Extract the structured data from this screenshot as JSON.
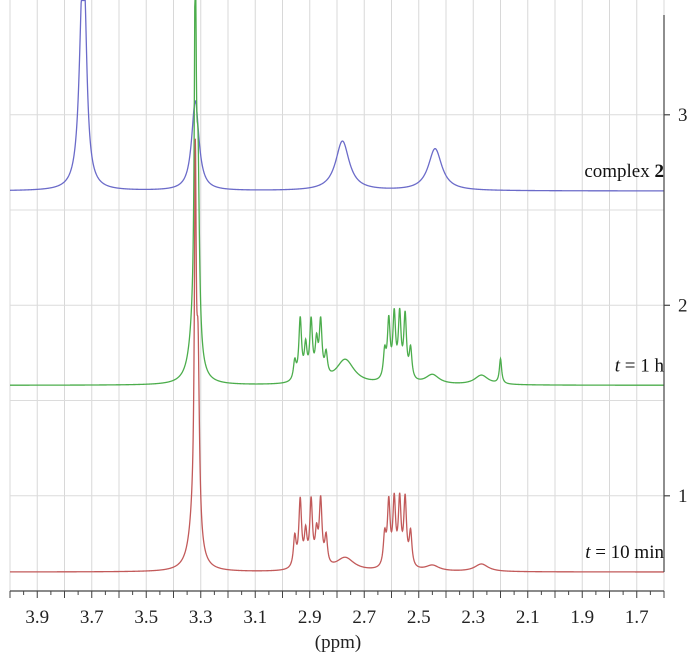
{
  "chart_data": {
    "type": "line",
    "title": "",
    "xlabel": "(ppm)",
    "ylabel": "",
    "xlim": [
      4.0,
      1.6
    ],
    "x_reversed": true,
    "ylim": [
      0.6,
      3.55
    ],
    "grid": true,
    "x_ticks": [
      3.9,
      3.7,
      3.5,
      3.3,
      3.1,
      2.9,
      2.7,
      2.5,
      2.3,
      2.1,
      1.9,
      1.7
    ],
    "x_tick_labels": [
      "3.9",
      "3.7",
      "3.5",
      "3.3",
      "3.1",
      "2.9",
      "2.7",
      "2.5",
      "2.3",
      "2.1",
      "1.9",
      "1.7"
    ],
    "y_ticks": [
      1,
      2,
      3
    ],
    "y_tick_labels": [
      "1",
      "2",
      "3"
    ],
    "series": [
      {
        "name": "complex 2",
        "label_prefix": "complex ",
        "label_emph": "2",
        "color": "#6b6bc9",
        "baseline": 2.6,
        "peaks": [
          {
            "ppm": 3.735,
            "height": 0.9,
            "width": 0.014
          },
          {
            "ppm": 3.725,
            "height": 0.45,
            "width": 0.01
          },
          {
            "ppm": 3.32,
            "height": 0.47,
            "width": 0.016
          },
          {
            "ppm": 2.78,
            "height": 0.26,
            "width": 0.03
          },
          {
            "ppm": 2.44,
            "height": 0.22,
            "width": 0.03
          }
        ]
      },
      {
        "name": "t = 1 h",
        "label_prefix": "t",
        "label_suffix": " = 1 h",
        "color": "#4cad4c",
        "baseline": 1.58,
        "peaks": [
          {
            "ppm": 3.32,
            "height": 1.95,
            "width": 0.004
          },
          {
            "ppm": 3.31,
            "height": 0.9,
            "width": 0.006
          },
          {
            "ppm": 3.325,
            "height": 0.25,
            "width": 0.02
          },
          {
            "ppm": 2.955,
            "height": 0.1,
            "width": 0.006
          },
          {
            "ppm": 2.935,
            "height": 0.32,
            "width": 0.006
          },
          {
            "ppm": 2.915,
            "height": 0.17,
            "width": 0.006
          },
          {
            "ppm": 2.895,
            "height": 0.3,
            "width": 0.006
          },
          {
            "ppm": 2.875,
            "height": 0.18,
            "width": 0.006
          },
          {
            "ppm": 2.86,
            "height": 0.29,
            "width": 0.006
          },
          {
            "ppm": 2.84,
            "height": 0.12,
            "width": 0.006
          },
          {
            "ppm": 2.77,
            "height": 0.13,
            "width": 0.04
          },
          {
            "ppm": 2.625,
            "height": 0.14,
            "width": 0.006
          },
          {
            "ppm": 2.61,
            "height": 0.3,
            "width": 0.006
          },
          {
            "ppm": 2.59,
            "height": 0.33,
            "width": 0.006
          },
          {
            "ppm": 2.57,
            "height": 0.33,
            "width": 0.006
          },
          {
            "ppm": 2.55,
            "height": 0.33,
            "width": 0.006
          },
          {
            "ppm": 2.53,
            "height": 0.16,
            "width": 0.006
          },
          {
            "ppm": 2.45,
            "height": 0.05,
            "width": 0.03
          },
          {
            "ppm": 2.27,
            "height": 0.05,
            "width": 0.03
          },
          {
            "ppm": 2.2,
            "height": 0.13,
            "width": 0.005
          }
        ]
      },
      {
        "name": "t = 10 min",
        "label_prefix": "t",
        "label_suffix": " = 10 min",
        "color": "#c25a5a",
        "baseline": 0.6,
        "peaks": [
          {
            "ppm": 3.32,
            "height": 1.8,
            "width": 0.004
          },
          {
            "ppm": 3.31,
            "height": 0.9,
            "width": 0.006
          },
          {
            "ppm": 3.325,
            "height": 0.25,
            "width": 0.02
          },
          {
            "ppm": 2.955,
            "height": 0.16,
            "width": 0.006
          },
          {
            "ppm": 2.935,
            "height": 0.35,
            "width": 0.006
          },
          {
            "ppm": 2.915,
            "height": 0.17,
            "width": 0.006
          },
          {
            "ppm": 2.895,
            "height": 0.34,
            "width": 0.006
          },
          {
            "ppm": 2.875,
            "height": 0.16,
            "width": 0.006
          },
          {
            "ppm": 2.86,
            "height": 0.34,
            "width": 0.006
          },
          {
            "ppm": 2.84,
            "height": 0.15,
            "width": 0.006
          },
          {
            "ppm": 2.77,
            "height": 0.07,
            "width": 0.04
          },
          {
            "ppm": 2.625,
            "height": 0.16,
            "width": 0.006
          },
          {
            "ppm": 2.61,
            "height": 0.33,
            "width": 0.006
          },
          {
            "ppm": 2.59,
            "height": 0.34,
            "width": 0.006
          },
          {
            "ppm": 2.57,
            "height": 0.34,
            "width": 0.006
          },
          {
            "ppm": 2.55,
            "height": 0.35,
            "width": 0.006
          },
          {
            "ppm": 2.53,
            "height": 0.18,
            "width": 0.006
          },
          {
            "ppm": 2.45,
            "height": 0.03,
            "width": 0.03
          },
          {
            "ppm": 2.27,
            "height": 0.04,
            "width": 0.03
          }
        ]
      }
    ]
  }
}
